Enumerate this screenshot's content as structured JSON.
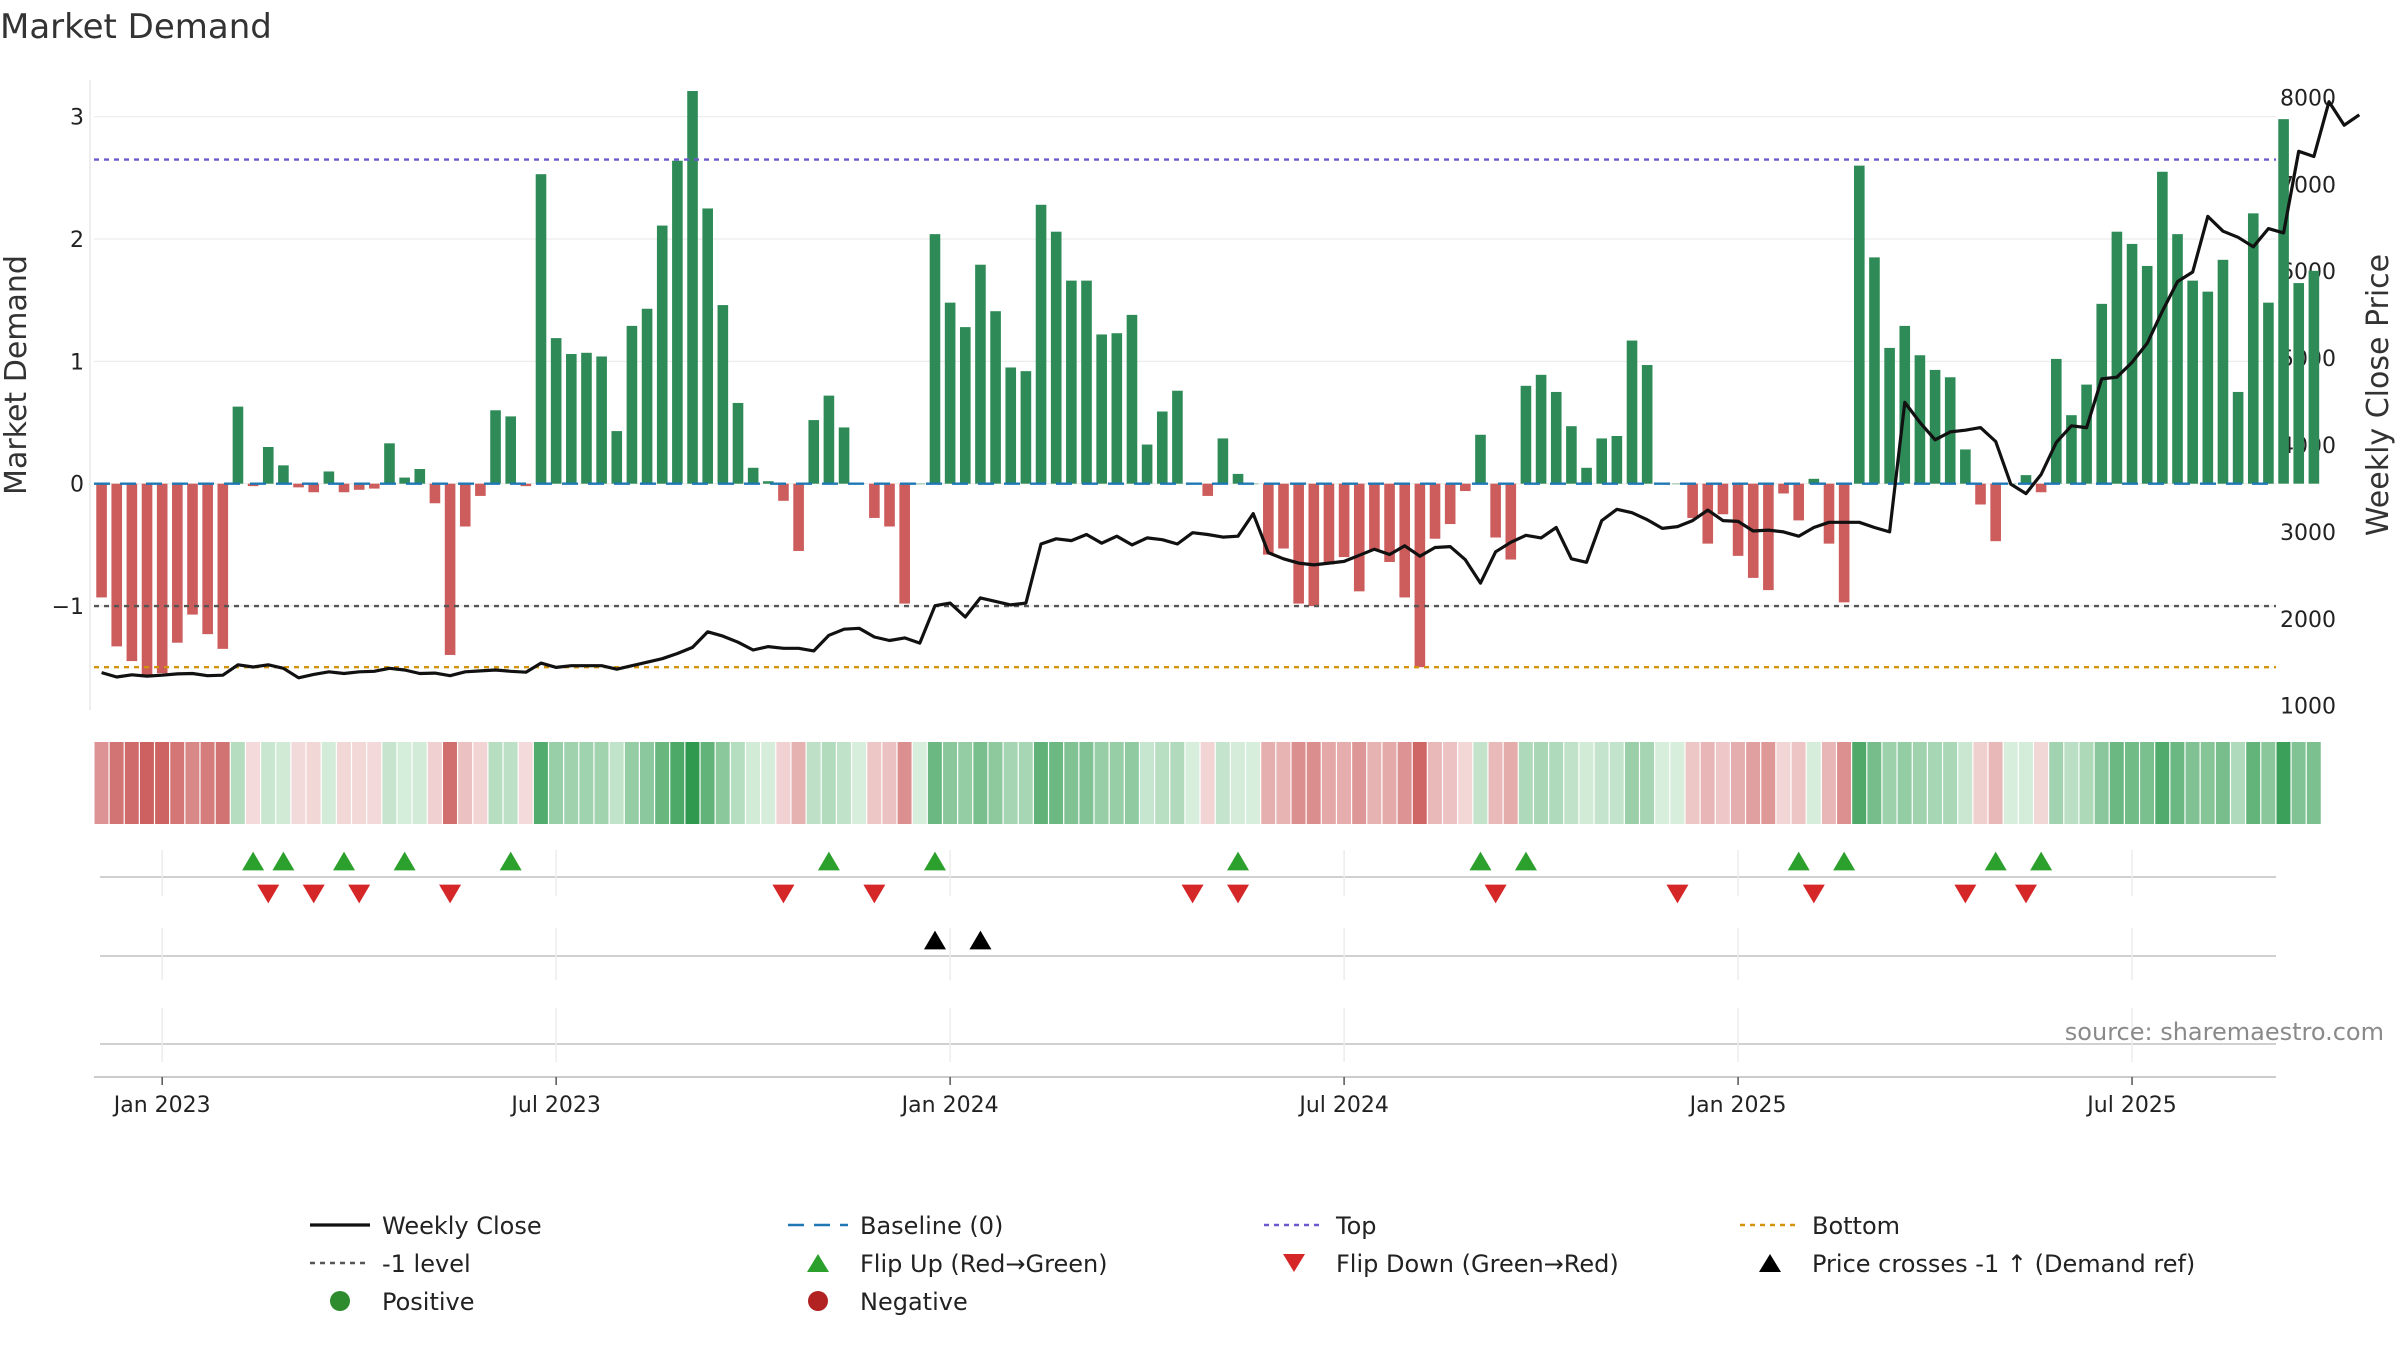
{
  "chart_data": {
    "type": "bar",
    "title": "Market Demand",
    "ylabel": "Market Demand",
    "y2label": "Weekly Close Price",
    "ylim": [
      -1.85,
      3.3
    ],
    "y2lim": [
      950,
      8200
    ],
    "y_ticks": [
      {
        "value": 3,
        "label": "3"
      },
      {
        "value": 2,
        "label": "2"
      },
      {
        "value": 1,
        "label": "1"
      },
      {
        "value": 0,
        "label": "0"
      },
      {
        "value": -1,
        "label": "−1"
      }
    ],
    "y2_ticks": [
      {
        "value": 8000,
        "label": "8000"
      },
      {
        "value": 7000,
        "label": "7000"
      },
      {
        "value": 6000,
        "label": "6000"
      },
      {
        "value": 5000,
        "label": "5000"
      },
      {
        "value": 4000,
        "label": "4000"
      },
      {
        "value": 3000,
        "label": "3000"
      },
      {
        "value": 2000,
        "label": "2000"
      },
      {
        "value": 1000,
        "label": "1000"
      }
    ],
    "x_ticks": [
      {
        "week": 4,
        "label": "Jan 2023"
      },
      {
        "week": 30,
        "label": "Jul 2023"
      },
      {
        "week": 56,
        "label": "Jan 2024"
      },
      {
        "week": 82,
        "label": "Jul 2024"
      },
      {
        "week": 108,
        "label": "Jan 2025"
      },
      {
        "week": 134,
        "label": "Jul 2025"
      }
    ],
    "weeks_total": 144,
    "top_level": 2.65,
    "bottom_level": -1.5,
    "minus_one_level": -1,
    "colors": {
      "positive": "#2e8b57",
      "negative": "#cd5c5c",
      "line": "#111111",
      "baseline": "#1f77b4",
      "top": "#6a5acd",
      "bottom": "#d4930a",
      "minus_one": "#555555",
      "flip_up": "#2ca02c",
      "flip_down": "#d62728",
      "cross": "#000000",
      "legend_positive": "#2e8b2e",
      "legend_negative": "#b22222"
    },
    "demand": [
      -0.93,
      -1.33,
      -1.45,
      -1.57,
      -1.55,
      -1.3,
      -1.07,
      -1.23,
      -1.35,
      0.63,
      -0.02,
      0.3,
      0.15,
      -0.03,
      -0.07,
      0.1,
      -0.07,
      -0.05,
      -0.04,
      0.33,
      0.05,
      0.12,
      -0.16,
      -1.4,
      -0.35,
      -0.1,
      0.6,
      0.55,
      -0.02,
      2.53,
      1.19,
      1.06,
      1.07,
      1.04,
      0.43,
      1.29,
      1.43,
      2.11,
      2.64,
      3.21,
      2.25,
      1.46,
      0.66,
      0.13,
      0.02,
      -0.14,
      -0.55,
      0.52,
      0.72,
      0.46,
      0.0,
      -0.28,
      -0.35,
      -0.98,
      0.0,
      2.04,
      1.48,
      1.28,
      1.79,
      1.41,
      0.95,
      0.92,
      2.28,
      2.06,
      1.66,
      1.66,
      1.22,
      1.23,
      1.38,
      0.32,
      0.59,
      0.76,
      0.0,
      -0.1,
      0.37,
      0.08,
      0.0,
      -0.58,
      -0.53,
      -0.98,
      -1.0,
      -0.66,
      -0.6,
      -0.88,
      -0.54,
      -0.64,
      -0.93,
      -1.5,
      -0.45,
      -0.33,
      -0.06,
      0.4,
      -0.44,
      -0.62,
      0.8,
      0.89,
      0.75,
      0.47,
      0.13,
      0.37,
      0.39,
      1.17,
      0.97,
      0.0,
      0.0,
      -0.28,
      -0.49,
      -0.25,
      -0.59,
      -0.77,
      -0.87,
      -0.08,
      -0.3,
      0.04,
      -0.49,
      -0.97,
      2.6,
      1.85,
      1.11,
      1.29,
      1.05,
      0.93,
      0.87,
      0.28,
      -0.17,
      -0.47,
      0.0,
      0.07,
      -0.07,
      1.02,
      0.56,
      0.81,
      1.47,
      2.06,
      1.96,
      1.78,
      2.55,
      2.04,
      1.66,
      1.57,
      1.83,
      0.75,
      2.21,
      1.48,
      2.98,
      1.64,
      1.74
    ],
    "price": [
      1380,
      1330,
      1355,
      1340,
      1350,
      1365,
      1370,
      1345,
      1350,
      1470,
      1445,
      1470,
      1430,
      1320,
      1360,
      1390,
      1370,
      1390,
      1395,
      1430,
      1410,
      1370,
      1375,
      1345,
      1390,
      1400,
      1410,
      1395,
      1385,
      1490,
      1440,
      1460,
      1460,
      1460,
      1420,
      1460,
      1500,
      1540,
      1600,
      1670,
      1850,
      1800,
      1730,
      1640,
      1680,
      1660,
      1660,
      1630,
      1810,
      1880,
      1890,
      1790,
      1750,
      1780,
      1720,
      2150,
      2180,
      2020,
      2240,
      2200,
      2160,
      2180,
      2860,
      2920,
      2900,
      2970,
      2870,
      2950,
      2850,
      2930,
      2910,
      2860,
      2990,
      2970,
      2940,
      2950,
      3210,
      2760,
      2690,
      2640,
      2620,
      2640,
      2660,
      2730,
      2800,
      2740,
      2840,
      2720,
      2820,
      2830,
      2680,
      2410,
      2770,
      2880,
      2960,
      2930,
      3050,
      2690,
      2650,
      3130,
      3260,
      3220,
      3140,
      3040,
      3060,
      3130,
      3250,
      3130,
      3120,
      3010,
      3020,
      3000,
      2950,
      3050,
      3110,
      3110,
      3110,
      3050,
      3000,
      4490,
      4260,
      4060,
      4150,
      4170,
      4200,
      4040,
      3550,
      3440,
      3660,
      4030,
      4220,
      4200,
      4760,
      4780,
      4950,
      5170,
      5540,
      5880,
      5990,
      6630,
      6460,
      6390,
      6280,
      6490,
      6440,
      7380,
      7320,
      7950,
      7680,
      7800
    ],
    "flip_up_weeks": [
      10,
      12,
      16,
      20,
      27,
      48,
      55,
      75,
      91,
      94,
      112,
      115,
      125,
      128
    ],
    "flip_down_weeks": [
      11,
      14,
      17,
      23,
      45,
      51,
      72,
      75,
      92,
      104,
      113,
      123,
      127
    ],
    "cross_weeks": [
      55,
      58
    ],
    "annotation": "source: sharemaestro.com",
    "legend": [
      {
        "label": "Weekly Close",
        "marker": "line"
      },
      {
        "label": "Baseline (0)",
        "marker": "dash"
      },
      {
        "label": "Top",
        "marker": "dot-purple"
      },
      {
        "label": "Bottom",
        "marker": "dot-orange"
      },
      {
        "label": "-1 level",
        "marker": "dot-gray"
      },
      {
        "label": "Flip Up (Red→Green)",
        "marker": "tri-up-green"
      },
      {
        "label": "Flip Down (Green→Red)",
        "marker": "tri-down-red"
      },
      {
        "label": "Price crosses -1 ↑ (Demand ref)",
        "marker": "tri-up-black"
      },
      {
        "label": "Positive",
        "marker": "circle-green"
      },
      {
        "label": "Negative",
        "marker": "circle-red"
      }
    ]
  }
}
